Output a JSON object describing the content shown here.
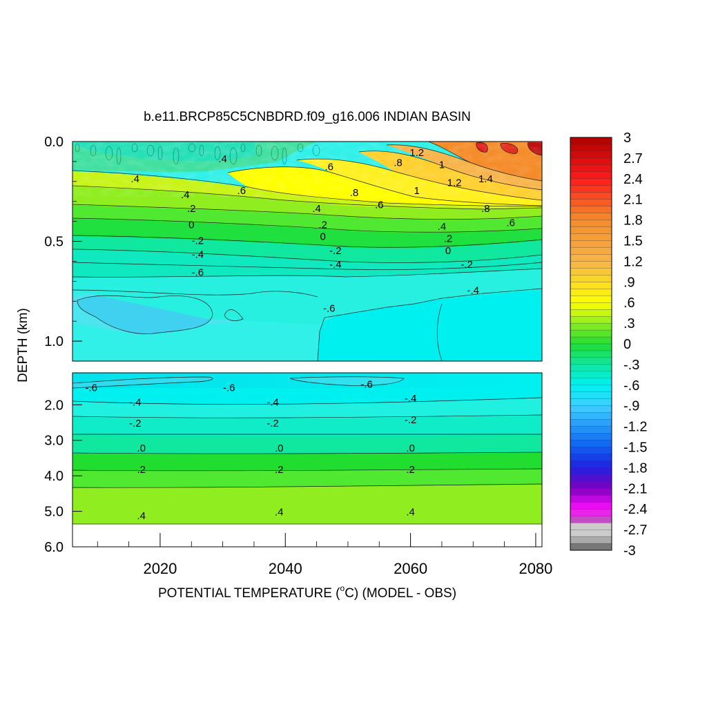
{
  "chart_data": {
    "type": "heatmap",
    "title": "b.e11.BRCP85C5CNBDRD.f09_g16.006 INDIAN BASIN",
    "xlabel": "POTENTIAL TEMPERATURE (",
    "xlabel_unit": "o",
    "xlabel_tail": "C) (MODEL - OBS)",
    "ylabel": "DEPTH (km)",
    "x_ticks": [
      "2020",
      "2040",
      "2060",
      "2080"
    ],
    "x_tick_values": [
      2020,
      2040,
      2060,
      2080
    ],
    "xlim": [
      2006,
      2081
    ],
    "upper_panel": {
      "ylim": [
        0.0,
        1.1
      ],
      "y_ticks": [
        "0.0",
        "0.5",
        "1.0"
      ],
      "y_tick_values": [
        0.0,
        0.5,
        1.0
      ],
      "contour_labels": [
        {
          "text": ".4",
          "x": 2030,
          "y": 0.1
        },
        {
          "text": ".6",
          "x": 2047,
          "y": 0.14
        },
        {
          "text": ".8",
          "x": 2058,
          "y": 0.12
        },
        {
          "text": "1.2",
          "x": 2061,
          "y": 0.07
        },
        {
          "text": "1",
          "x": 2065,
          "y": 0.13
        },
        {
          "text": ".4",
          "x": 2016,
          "y": 0.2
        },
        {
          "text": "1.2",
          "x": 2067,
          "y": 0.22
        },
        {
          "text": "1.4",
          "x": 2072,
          "y": 0.2
        },
        {
          "text": ".4",
          "x": 2024,
          "y": 0.28
        },
        {
          "text": ".6",
          "x": 2033,
          "y": 0.26
        },
        {
          "text": ".8",
          "x": 2051,
          "y": 0.27
        },
        {
          "text": "1",
          "x": 2061,
          "y": 0.26
        },
        {
          "text": ".2",
          "x": 2025,
          "y": 0.35
        },
        {
          "text": ".4",
          "x": 2045,
          "y": 0.35
        },
        {
          "text": ".6",
          "x": 2055,
          "y": 0.33
        },
        {
          "text": ".8",
          "x": 2072,
          "y": 0.35
        },
        {
          "text": "0",
          "x": 2025,
          "y": 0.43
        },
        {
          "text": ".2",
          "x": 2046,
          "y": 0.43
        },
        {
          "text": ".4",
          "x": 2065,
          "y": 0.44
        },
        {
          "text": ".6",
          "x": 2076,
          "y": 0.42
        },
        {
          "text": "0",
          "x": 2046,
          "y": 0.49
        },
        {
          "text": ".2",
          "x": 2066,
          "y": 0.5
        },
        {
          "text": "-.2",
          "x": 2026,
          "y": 0.51
        },
        {
          "text": "-.2",
          "x": 2048,
          "y": 0.56
        },
        {
          "text": "0",
          "x": 2066,
          "y": 0.56
        },
        {
          "text": "-.4",
          "x": 2026,
          "y": 0.58
        },
        {
          "text": "-.4",
          "x": 2048,
          "y": 0.63
        },
        {
          "text": "-.2",
          "x": 2069,
          "y": 0.63
        },
        {
          "text": "-.6",
          "x": 2026,
          "y": 0.67
        },
        {
          "text": "-.4",
          "x": 2070,
          "y": 0.76
        },
        {
          "text": "-.6",
          "x": 2047,
          "y": 0.85
        }
      ]
    },
    "lower_panel": {
      "ylim": [
        1.1,
        6.0
      ],
      "y_ticks": [
        "2.0",
        "3.0",
        "4.0",
        "5.0",
        "6.0"
      ],
      "y_tick_values": [
        2.0,
        3.0,
        4.0,
        5.0,
        6.0
      ],
      "contour_labels": [
        {
          "text": "-.6",
          "x": 2009,
          "y": 1.6
        },
        {
          "text": "-.6",
          "x": 2031,
          "y": 1.6
        },
        {
          "text": "-.6",
          "x": 2053,
          "y": 1.5
        },
        {
          "text": "-.4",
          "x": 2016,
          "y": 2.0
        },
        {
          "text": "-.4",
          "x": 2038,
          "y": 2.0
        },
        {
          "text": "-.4",
          "x": 2060,
          "y": 1.9
        },
        {
          "text": "-.2",
          "x": 2016,
          "y": 2.6
        },
        {
          "text": "-.2",
          "x": 2038,
          "y": 2.6
        },
        {
          "text": "-.2",
          "x": 2060,
          "y": 2.5
        },
        {
          "text": ".0",
          "x": 2017,
          "y": 3.3
        },
        {
          "text": ".0",
          "x": 2039,
          "y": 3.3
        },
        {
          "text": ".0",
          "x": 2060,
          "y": 3.3
        },
        {
          "text": ".2",
          "x": 2017,
          "y": 3.9
        },
        {
          "text": ".2",
          "x": 2039,
          "y": 3.9
        },
        {
          "text": ".2",
          "x": 2060,
          "y": 3.9
        },
        {
          "text": ".4",
          "x": 2017,
          "y": 5.2
        },
        {
          "text": ".4",
          "x": 2039,
          "y": 5.1
        },
        {
          "text": ".4",
          "x": 2060,
          "y": 5.1
        }
      ]
    },
    "colorbar": {
      "range": [
        -3,
        3
      ],
      "labels": [
        "3",
        "2.7",
        "2.4",
        "2.1",
        "1.8",
        "1.5",
        "1.2",
        ".9",
        ".6",
        ".3",
        "0",
        "-.3",
        "-.6",
        "-.9",
        "-1.2",
        "-1.5",
        "-1.8",
        "-2.1",
        "-2.4",
        "-2.7",
        "-3"
      ],
      "colors": {
        "dark_red": "#b00000",
        "red": "#ff1a1a",
        "orange": "#f58c2a",
        "light_orange": "#f7b44a",
        "yellow": "#ffff00",
        "lime": "#90ee20",
        "green": "#20dd30",
        "teal_green": "#10e8a0",
        "cyan": "#00f0f0",
        "light_blue": "#40d0ff",
        "blue": "#1060f0",
        "deep_blue": "#2020e0",
        "purple": "#8000c0",
        "magenta": "#ff10ff",
        "gray": "#888888"
      }
    }
  }
}
